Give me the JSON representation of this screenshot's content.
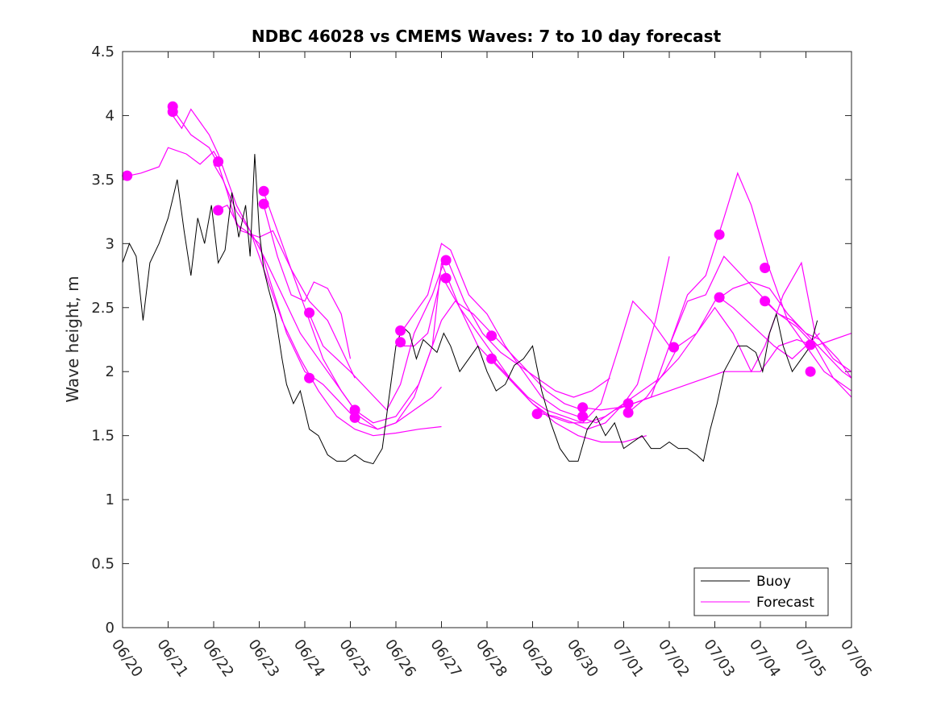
{
  "chart_data": {
    "type": "line",
    "title": "NDBC 46028 vs CMEMS Waves: 7 to 10 day forecast",
    "ylabel": "Wave height, m",
    "xlabel": "",
    "ylim": [
      0,
      4.5
    ],
    "yticks": [
      "0",
      "0.5",
      "1",
      "1.5",
      "2",
      "2.5",
      "3",
      "3.5",
      "4",
      "4.5"
    ],
    "xticks": [
      "06/20",
      "06/21",
      "06/22",
      "06/23",
      "06/24",
      "06/25",
      "06/26",
      "06/27",
      "06/28",
      "06/29",
      "06/30",
      "07/01",
      "07/02",
      "07/03",
      "07/04",
      "07/05",
      "07/06"
    ],
    "grid": false,
    "legend_position": "bottom-right",
    "colors": {
      "buoy": "#000000",
      "forecast": "#ff00ff"
    },
    "buoy": {
      "name": "Buoy",
      "x": [
        0,
        0.15,
        0.3,
        0.45,
        0.6,
        0.8,
        1.0,
        1.1,
        1.2,
        1.35,
        1.5,
        1.65,
        1.8,
        1.95,
        2.1,
        2.25,
        2.4,
        2.55,
        2.7,
        2.8,
        2.9,
        3.0,
        3.1,
        3.2,
        3.35,
        3.5,
        3.6,
        3.75,
        3.9,
        4.1,
        4.3,
        4.5,
        4.7,
        4.9,
        5.1,
        5.3,
        5.5,
        5.7,
        5.85,
        6.0,
        6.15,
        6.3,
        6.45,
        6.6,
        6.75,
        6.9,
        7.05,
        7.2,
        7.4,
        7.6,
        7.8,
        8.0,
        8.2,
        8.4,
        8.6,
        8.8,
        9.0,
        9.2,
        9.4,
        9.6,
        9.8,
        10.0,
        10.2,
        10.4,
        10.6,
        10.8,
        11.0,
        11.2,
        11.4,
        11.6,
        11.8,
        12.0,
        12.2,
        12.4,
        12.6,
        12.75,
        12.9,
        13.05,
        13.2,
        13.35,
        13.5,
        13.7,
        13.9,
        14.05,
        14.2,
        14.35,
        14.5,
        14.7,
        14.9,
        15.1,
        15.25
      ],
      "y": [
        2.85,
        3.0,
        2.9,
        2.4,
        2.85,
        3.0,
        3.2,
        3.35,
        3.5,
        3.1,
        2.75,
        3.2,
        3.0,
        3.3,
        2.85,
        2.95,
        3.4,
        3.05,
        3.3,
        2.9,
        3.7,
        3.1,
        2.8,
        2.65,
        2.45,
        2.1,
        1.9,
        1.75,
        1.85,
        1.55,
        1.5,
        1.35,
        1.3,
        1.3,
        1.35,
        1.3,
        1.28,
        1.4,
        1.8,
        2.2,
        2.35,
        2.3,
        2.1,
        2.25,
        2.2,
        2.15,
        2.3,
        2.2,
        2.0,
        2.1,
        2.2,
        2.0,
        1.85,
        1.9,
        2.05,
        2.1,
        2.2,
        1.85,
        1.6,
        1.4,
        1.3,
        1.3,
        1.55,
        1.65,
        1.5,
        1.6,
        1.4,
        1.45,
        1.5,
        1.4,
        1.4,
        1.45,
        1.4,
        1.4,
        1.35,
        1.3,
        1.55,
        1.75,
        2.0,
        2.1,
        2.2,
        2.2,
        2.15,
        2.0,
        2.3,
        2.45,
        2.2,
        2.0,
        2.1,
        2.2,
        2.4
      ]
    },
    "forecast": {
      "name": "Forecast",
      "lines": [
        {
          "x": [
            0,
            0.4,
            0.8,
            1.0,
            1.4,
            1.7,
            2.0,
            2.2
          ],
          "y": [
            3.52,
            3.55,
            3.6,
            3.75,
            3.7,
            3.62,
            3.72,
            3.6
          ]
        },
        {
          "x": [
            1.1,
            1.3,
            1.5,
            1.7,
            1.9,
            2.1,
            2.3,
            2.5,
            2.7,
            3.0,
            3.2,
            3.6,
            4.0,
            4.4,
            4.8,
            5.2,
            5.6,
            6.0,
            6.4,
            6.8,
            7.0
          ],
          "y": [
            4.05,
            3.95,
            3.85,
            3.8,
            3.75,
            3.62,
            3.4,
            3.15,
            3.1,
            3.0,
            2.75,
            2.3,
            2.0,
            1.9,
            1.75,
            1.6,
            1.55,
            1.6,
            1.7,
            1.8,
            1.88
          ]
        },
        {
          "x": [
            1.1,
            1.3,
            1.5,
            1.7,
            1.9,
            2.1,
            2.3,
            2.5,
            2.8,
            3.1,
            3.5,
            3.9,
            4.3,
            4.7,
            5.1,
            5.5,
            6.0,
            6.5,
            7.0
          ],
          "y": [
            4.0,
            3.9,
            4.05,
            3.95,
            3.85,
            3.7,
            3.5,
            3.3,
            3.1,
            2.8,
            2.4,
            2.1,
            1.85,
            1.65,
            1.55,
            1.5,
            1.52,
            1.55,
            1.57
          ]
        },
        {
          "x": [
            2.0,
            2.2,
            2.5,
            2.8,
            3.1,
            3.5,
            3.9,
            4.3,
            4.7,
            5.1,
            5.5,
            6.0,
            6.5,
            7.0,
            7.3,
            7.7,
            8.1,
            8.5,
            8.9,
            9.3,
            9.7,
            10.1
          ],
          "y": [
            3.62,
            3.5,
            3.25,
            3.1,
            2.9,
            2.6,
            2.3,
            2.1,
            1.9,
            1.7,
            1.6,
            1.65,
            1.9,
            2.4,
            2.55,
            2.45,
            2.3,
            2.15,
            2.0,
            1.85,
            1.75,
            1.7
          ]
        },
        {
          "x": [
            2.0,
            2.3,
            2.6,
            3.0,
            3.3,
            3.7,
            4.1,
            4.5,
            4.9,
            5.1
          ],
          "y": [
            3.25,
            3.3,
            3.1,
            3.05,
            3.1,
            2.8,
            2.55,
            2.4,
            2.1,
            1.95
          ]
        },
        {
          "x": [
            3.1,
            3.3,
            3.5,
            3.8,
            4.1,
            4.4,
            4.8,
            5.2,
            5.6,
            6.0,
            6.4,
            6.8,
            7.0,
            7.4,
            7.8,
            8.2,
            8.6,
            9.0,
            9.5,
            10.0,
            10.5,
            11.0,
            11.5
          ],
          "y": [
            3.4,
            3.2,
            3.0,
            2.7,
            2.4,
            2.1,
            1.85,
            1.65,
            1.55,
            1.6,
            1.8,
            2.2,
            2.85,
            2.5,
            2.3,
            2.1,
            1.9,
            1.75,
            1.6,
            1.5,
            1.45,
            1.45,
            1.5
          ]
        },
        {
          "x": [
            3.1,
            3.4,
            3.7,
            4.0,
            4.2,
            4.5,
            4.8,
            5.0
          ],
          "y": [
            3.3,
            2.9,
            2.6,
            2.55,
            2.7,
            2.65,
            2.45,
            2.1
          ]
        },
        {
          "x": [
            4.1,
            4.4,
            4.7,
            5.0,
            5.4,
            5.8,
            6.1,
            6.4,
            6.8,
            7.1,
            7.5,
            7.9,
            8.3,
            8.7,
            9.1,
            9.5,
            9.9,
            10.3,
            10.7
          ],
          "y": [
            2.45,
            2.2,
            2.1,
            2.0,
            1.85,
            1.7,
            1.9,
            2.3,
            2.6,
            2.9,
            2.55,
            2.3,
            2.15,
            2.05,
            1.95,
            1.85,
            1.8,
            1.85,
            1.95
          ]
        },
        {
          "x": [
            6.1,
            6.4,
            6.7,
            7.0,
            7.2,
            7.6,
            8.0,
            8.4,
            8.8,
            9.2,
            9.6,
            10.0,
            10.4,
            10.8,
            11.2,
            11.6,
            12.0,
            12.4,
            12.8,
            13.2,
            13.6,
            14.0,
            14.4,
            14.8,
            15.2,
            15.6,
            16.0
          ],
          "y": [
            2.3,
            2.45,
            2.6,
            3.0,
            2.95,
            2.6,
            2.45,
            2.2,
            2.0,
            1.8,
            1.7,
            1.65,
            1.6,
            1.7,
            1.75,
            1.8,
            1.85,
            1.9,
            1.95,
            2.0,
            2.0,
            2.0,
            2.2,
            2.25,
            2.2,
            2.25,
            2.3
          ]
        },
        {
          "x": [
            6.1,
            6.4,
            6.7,
            7.0,
            7.4,
            7.8,
            8.2,
            8.6,
            9.0,
            9.4,
            9.8,
            10.2,
            10.6,
            11.0,
            11.4,
            11.8,
            12.2,
            12.6,
            13.0,
            13.4,
            13.8,
            14.2,
            14.6,
            15.0,
            15.4,
            15.8,
            16.0
          ],
          "y": [
            2.2,
            2.2,
            2.3,
            2.75,
            2.5,
            2.2,
            2.05,
            1.9,
            1.75,
            1.65,
            1.6,
            1.6,
            1.65,
            1.75,
            1.85,
            1.95,
            2.1,
            2.3,
            2.55,
            2.65,
            2.7,
            2.65,
            2.45,
            2.3,
            2.15,
            2.0,
            1.95
          ]
        },
        {
          "x": [
            8.1,
            8.5,
            8.9,
            9.3,
            9.7,
            10.1,
            10.5,
            10.9,
            11.2,
            11.6,
            12.0,
            12.4,
            12.8,
            13.2,
            13.5,
            13.8,
            14.2,
            14.6,
            15.0,
            15.4,
            15.8,
            16.0
          ],
          "y": [
            2.1,
            1.95,
            1.8,
            1.7,
            1.65,
            1.6,
            1.75,
            2.2,
            2.55,
            2.4,
            2.2,
            2.6,
            2.75,
            3.2,
            3.55,
            3.3,
            2.8,
            2.4,
            2.2,
            2.0,
            1.9,
            1.85
          ]
        },
        {
          "x": [
            9.2,
            9.5,
            9.9,
            10.2,
            10.6,
            11.0,
            11.3,
            11.7,
            12.0
          ],
          "y": [
            1.67,
            1.65,
            1.6,
            1.55,
            1.6,
            1.75,
            1.9,
            2.4,
            2.9
          ]
        },
        {
          "x": [
            10.1,
            10.5,
            10.9,
            11.2,
            11.6,
            12.0,
            12.4,
            12.8,
            13.2,
            13.6,
            14.0,
            14.4,
            14.8,
            15.2,
            15.6,
            16.0
          ],
          "y": [
            1.72,
            1.7,
            1.72,
            1.75,
            1.8,
            2.2,
            2.55,
            2.6,
            2.9,
            2.75,
            2.6,
            2.45,
            2.35,
            2.2,
            1.95,
            1.8
          ]
        },
        {
          "x": [
            11.1,
            11.5,
            11.9,
            12.2,
            12.6,
            13.0,
            13.4,
            13.8,
            14.1,
            14.5,
            14.9,
            15.2,
            15.6,
            16.0
          ],
          "y": [
            1.68,
            1.8,
            2.0,
            2.2,
            2.3,
            2.5,
            2.3,
            2.0,
            2.2,
            2.6,
            2.85,
            2.3,
            2.1,
            2.0
          ]
        },
        {
          "x": [
            13.1,
            13.4,
            13.7,
            14.0,
            14.3,
            14.7,
            15.0,
            15.3
          ],
          "y": [
            2.58,
            2.5,
            2.4,
            2.3,
            2.2,
            2.1,
            2.2,
            2.3
          ]
        },
        {
          "x": [
            14.1,
            14.4,
            14.7,
            15.0,
            15.3,
            15.7,
            16.0
          ],
          "y": [
            2.55,
            2.45,
            2.4,
            2.3,
            2.25,
            2.1,
            1.95
          ]
        }
      ],
      "markers": [
        {
          "x": 0.1,
          "y": 3.53
        },
        {
          "x": 1.1,
          "y": 4.07
        },
        {
          "x": 1.1,
          "y": 4.03
        },
        {
          "x": 2.1,
          "y": 3.64
        },
        {
          "x": 2.1,
          "y": 3.26
        },
        {
          "x": 3.1,
          "y": 3.41
        },
        {
          "x": 3.1,
          "y": 3.31
        },
        {
          "x": 4.1,
          "y": 2.46
        },
        {
          "x": 4.1,
          "y": 1.95
        },
        {
          "x": 5.1,
          "y": 1.7
        },
        {
          "x": 5.1,
          "y": 1.64
        },
        {
          "x": 6.1,
          "y": 2.32
        },
        {
          "x": 6.1,
          "y": 2.23
        },
        {
          "x": 7.1,
          "y": 2.87
        },
        {
          "x": 7.1,
          "y": 2.73
        },
        {
          "x": 8.1,
          "y": 2.28
        },
        {
          "x": 8.1,
          "y": 2.1
        },
        {
          "x": 9.1,
          "y": 1.67
        },
        {
          "x": 10.1,
          "y": 1.72
        },
        {
          "x": 10.1,
          "y": 1.65
        },
        {
          "x": 11.1,
          "y": 1.75
        },
        {
          "x": 11.1,
          "y": 1.68
        },
        {
          "x": 12.1,
          "y": 2.19
        },
        {
          "x": 13.1,
          "y": 3.07
        },
        {
          "x": 13.1,
          "y": 2.58
        },
        {
          "x": 14.1,
          "y": 2.81
        },
        {
          "x": 14.1,
          "y": 2.55
        },
        {
          "x": 15.1,
          "y": 2.21
        },
        {
          "x": 15.1,
          "y": 2.0
        }
      ]
    },
    "legend": {
      "buoy_label": "Buoy",
      "forecast_label": "Forecast"
    }
  }
}
